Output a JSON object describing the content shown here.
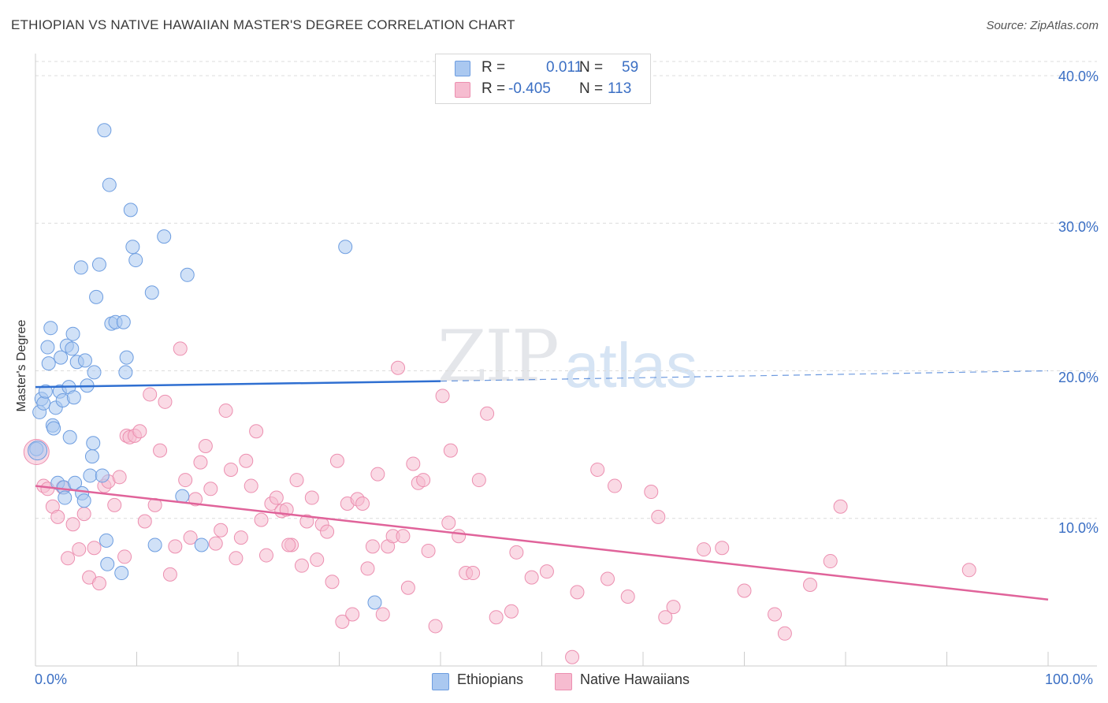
{
  "title": "ETHIOPIAN VS NATIVE HAWAIIAN MASTER'S DEGREE CORRELATION CHART",
  "source": "Source: ZipAtlas.com",
  "watermark": {
    "zip": "ZIP",
    "atlas": "atlas"
  },
  "legend": {
    "r_label": "R =",
    "n_label": "N =",
    "ethiopians": {
      "r": "0.011",
      "n": "59"
    },
    "hawaiians": {
      "r": "-0.405",
      "n": "113"
    }
  },
  "bottom_legend": {
    "ethiopians": "Ethiopians",
    "hawaiians": "Native Hawaiians"
  },
  "colors": {
    "blue_fill": "#aac8f0",
    "blue_stroke": "#6d9de0",
    "blue_line": "#2f6fd1",
    "pink_fill": "#f6bcd0",
    "pink_stroke": "#ec8fb0",
    "pink_line": "#e0639a",
    "tick_text": "#3b6fc4",
    "grid": "#dcdcdc"
  },
  "chart_data": {
    "type": "scatter",
    "title": "ETHIOPIAN VS NATIVE HAWAIIAN MASTER'S DEGREE CORRELATION CHART",
    "xlabel": "",
    "ylabel": "Master's Degree",
    "xlim": [
      0,
      100
    ],
    "ylim": [
      0,
      40
    ],
    "x_tick_labels": [
      "0.0%",
      "100.0%"
    ],
    "y_ticks": [
      10,
      20,
      30,
      40
    ],
    "y_tick_labels": [
      "10.0%",
      "20.0%",
      "30.0%",
      "40.0%"
    ],
    "series": [
      {
        "name": "Ethiopians",
        "trend": {
          "x0": 0,
          "y0": 18.9,
          "x1": 40,
          "y1": 19.3,
          "dashed_to_x": 100,
          "dashed_to_y": 20.0
        },
        "points": [
          [
            0.1,
            14.7
          ],
          [
            0.4,
            17.2
          ],
          [
            0.6,
            18.1
          ],
          [
            0.8,
            17.8
          ],
          [
            1.0,
            18.6
          ],
          [
            1.2,
            21.6
          ],
          [
            1.3,
            20.5
          ],
          [
            1.5,
            22.9
          ],
          [
            1.7,
            16.3
          ],
          [
            1.8,
            16.1
          ],
          [
            2.0,
            17.5
          ],
          [
            2.2,
            12.4
          ],
          [
            2.4,
            18.6
          ],
          [
            2.5,
            20.9
          ],
          [
            2.7,
            18.0
          ],
          [
            2.8,
            12.1
          ],
          [
            2.9,
            11.4
          ],
          [
            3.1,
            21.7
          ],
          [
            3.3,
            18.9
          ],
          [
            3.4,
            15.5
          ],
          [
            3.6,
            21.5
          ],
          [
            3.7,
            22.5
          ],
          [
            3.8,
            18.2
          ],
          [
            3.9,
            12.4
          ],
          [
            4.1,
            20.6
          ],
          [
            4.5,
            27.0
          ],
          [
            4.6,
            11.7
          ],
          [
            4.8,
            11.2
          ],
          [
            4.9,
            20.7
          ],
          [
            5.1,
            19.0
          ],
          [
            5.4,
            12.9
          ],
          [
            5.6,
            14.2
          ],
          [
            5.7,
            15.1
          ],
          [
            5.8,
            19.9
          ],
          [
            6.0,
            25.0
          ],
          [
            6.3,
            27.2
          ],
          [
            6.6,
            12.9
          ],
          [
            6.8,
            36.3
          ],
          [
            7.0,
            8.5
          ],
          [
            7.1,
            6.9
          ],
          [
            7.3,
            32.6
          ],
          [
            7.5,
            23.2
          ],
          [
            7.9,
            23.3
          ],
          [
            8.5,
            6.3
          ],
          [
            8.7,
            23.3
          ],
          [
            8.9,
            19.9
          ],
          [
            9.0,
            20.9
          ],
          [
            9.4,
            30.9
          ],
          [
            9.6,
            28.4
          ],
          [
            9.9,
            27.5
          ],
          [
            11.5,
            25.3
          ],
          [
            11.8,
            8.2
          ],
          [
            12.7,
            29.1
          ],
          [
            14.5,
            11.5
          ],
          [
            15.0,
            26.5
          ],
          [
            16.4,
            8.2
          ],
          [
            30.6,
            28.4
          ],
          [
            33.5,
            4.3
          ],
          [
            0.2,
            14.6
          ]
        ]
      },
      {
        "name": "Native Hawaiians",
        "trend": {
          "x0": 0,
          "y0": 12.2,
          "x1": 100,
          "y1": 4.5
        },
        "points": [
          [
            0.1,
            14.5
          ],
          [
            0.8,
            12.2
          ],
          [
            1.2,
            12.0
          ],
          [
            1.7,
            10.8
          ],
          [
            2.2,
            10.1
          ],
          [
            2.7,
            12.1
          ],
          [
            3.2,
            7.3
          ],
          [
            3.7,
            9.6
          ],
          [
            4.3,
            7.9
          ],
          [
            4.8,
            10.3
          ],
          [
            5.3,
            6.0
          ],
          [
            5.8,
            8.0
          ],
          [
            6.3,
            5.6
          ],
          [
            6.8,
            12.2
          ],
          [
            7.2,
            12.5
          ],
          [
            7.8,
            10.9
          ],
          [
            8.3,
            12.8
          ],
          [
            8.8,
            7.4
          ],
          [
            9.0,
            15.6
          ],
          [
            9.3,
            15.5
          ],
          [
            9.8,
            15.6
          ],
          [
            10.3,
            15.9
          ],
          [
            10.8,
            9.8
          ],
          [
            11.3,
            18.4
          ],
          [
            11.8,
            10.9
          ],
          [
            12.3,
            14.6
          ],
          [
            12.8,
            17.9
          ],
          [
            13.3,
            6.2
          ],
          [
            13.8,
            8.1
          ],
          [
            14.3,
            21.5
          ],
          [
            14.8,
            12.6
          ],
          [
            15.3,
            8.7
          ],
          [
            15.8,
            11.3
          ],
          [
            16.3,
            13.8
          ],
          [
            16.8,
            14.9
          ],
          [
            17.3,
            12.0
          ],
          [
            17.8,
            8.3
          ],
          [
            18.3,
            9.2
          ],
          [
            18.8,
            17.3
          ],
          [
            19.3,
            13.3
          ],
          [
            19.8,
            7.3
          ],
          [
            20.3,
            8.7
          ],
          [
            20.8,
            13.9
          ],
          [
            21.3,
            12.2
          ],
          [
            21.8,
            15.9
          ],
          [
            22.3,
            9.9
          ],
          [
            22.8,
            7.5
          ],
          [
            23.3,
            11.0
          ],
          [
            23.8,
            11.4
          ],
          [
            24.3,
            10.5
          ],
          [
            24.8,
            10.6
          ],
          [
            25.3,
            8.2
          ],
          [
            25.8,
            12.6
          ],
          [
            26.3,
            6.8
          ],
          [
            26.8,
            9.8
          ],
          [
            27.3,
            11.4
          ],
          [
            27.8,
            7.2
          ],
          [
            28.3,
            9.6
          ],
          [
            28.8,
            9.1
          ],
          [
            29.3,
            5.7
          ],
          [
            29.8,
            13.9
          ],
          [
            30.3,
            3.0
          ],
          [
            30.8,
            11.0
          ],
          [
            31.3,
            3.5
          ],
          [
            31.8,
            11.3
          ],
          [
            32.3,
            11.0
          ],
          [
            32.8,
            6.6
          ],
          [
            33.3,
            8.1
          ],
          [
            33.8,
            13.0
          ],
          [
            34.3,
            3.5
          ],
          [
            34.8,
            8.1
          ],
          [
            35.3,
            8.8
          ],
          [
            35.8,
            20.2
          ],
          [
            36.3,
            8.8
          ],
          [
            36.8,
            5.3
          ],
          [
            37.3,
            13.7
          ],
          [
            37.8,
            12.4
          ],
          [
            38.3,
            12.6
          ],
          [
            38.8,
            7.8
          ],
          [
            39.5,
            2.7
          ],
          [
            40.2,
            18.3
          ],
          [
            41.0,
            14.6
          ],
          [
            41.8,
            8.8
          ],
          [
            42.5,
            6.3
          ],
          [
            43.2,
            6.3
          ],
          [
            43.8,
            12.6
          ],
          [
            44.6,
            17.1
          ],
          [
            45.5,
            3.3
          ],
          [
            47.0,
            3.7
          ],
          [
            49.0,
            6.0
          ],
          [
            50.5,
            6.4
          ],
          [
            53.0,
            0.6
          ],
          [
            55.5,
            13.3
          ],
          [
            56.5,
            5.9
          ],
          [
            57.2,
            12.2
          ],
          [
            58.5,
            4.7
          ],
          [
            60.8,
            11.8
          ],
          [
            61.5,
            10.1
          ],
          [
            62.2,
            3.3
          ],
          [
            63.0,
            4.0
          ],
          [
            66.0,
            7.9
          ],
          [
            67.8,
            8.0
          ],
          [
            70.0,
            5.1
          ],
          [
            73.0,
            3.5
          ],
          [
            74.0,
            2.2
          ],
          [
            76.5,
            5.5
          ],
          [
            78.5,
            7.1
          ],
          [
            79.5,
            10.8
          ],
          [
            92.2,
            6.5
          ],
          [
            47.5,
            7.7
          ],
          [
            53.5,
            5.0
          ],
          [
            25.0,
            8.2
          ],
          [
            40.8,
            9.7
          ]
        ]
      }
    ]
  }
}
